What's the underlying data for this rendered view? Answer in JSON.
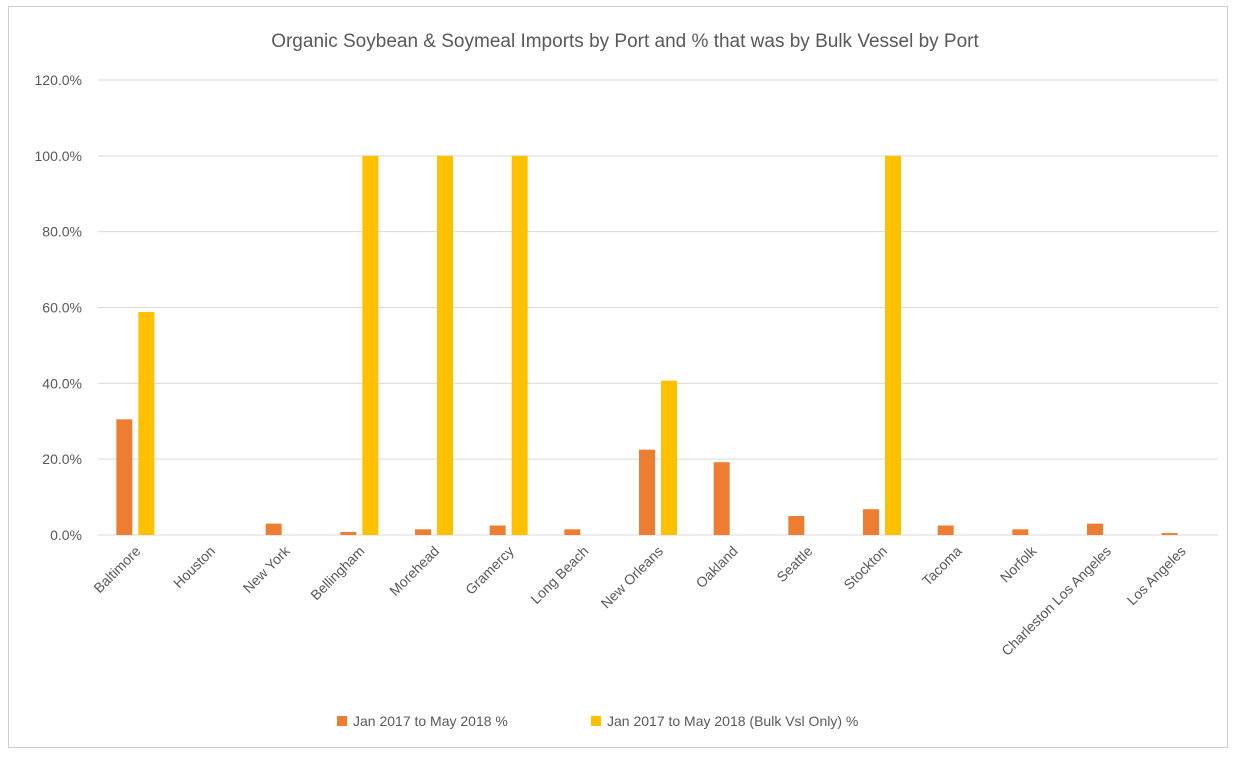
{
  "chart_data": {
    "type": "bar",
    "title": "Organic Soybean & Soymeal Imports by Port and % that was by Bulk Vessel by Port",
    "xlabel": "",
    "ylabel": "",
    "ylim": [
      0,
      120
    ],
    "yticks": [
      0,
      20,
      40,
      60,
      80,
      100,
      120
    ],
    "ytick_labels": [
      "0.0%",
      "20.0%",
      "40.0%",
      "60.0%",
      "80.0%",
      "100.0%",
      "120.0%"
    ],
    "categories": [
      "Baltimore",
      "Houston",
      "New York",
      "Bellingham",
      "Morehead",
      "Gramercy",
      "Long Beach",
      "New Orleans",
      "Oakland",
      "Seattle",
      "Stockton",
      "Tacoma",
      "Norfolk",
      "Charleston Los Angeles",
      "Los Angeles"
    ],
    "series": [
      {
        "name": "Jan 2017 to May 2018 %",
        "color": "#ED7D31",
        "values": [
          30.5,
          0,
          3.0,
          0.8,
          1.5,
          2.5,
          1.5,
          22.5,
          19.2,
          5.0,
          6.8,
          2.5,
          1.5,
          3.0,
          0.5
        ]
      },
      {
        "name": "Jan 2017 to May 2018 (Bulk Vsl Only) %",
        "color": "#FFC000",
        "values": [
          58.8,
          0,
          0,
          100,
          100,
          100,
          0,
          40.7,
          0,
          0,
          100,
          0,
          0,
          0,
          0
        ]
      }
    ],
    "grid": true,
    "legend_position": "bottom"
  }
}
